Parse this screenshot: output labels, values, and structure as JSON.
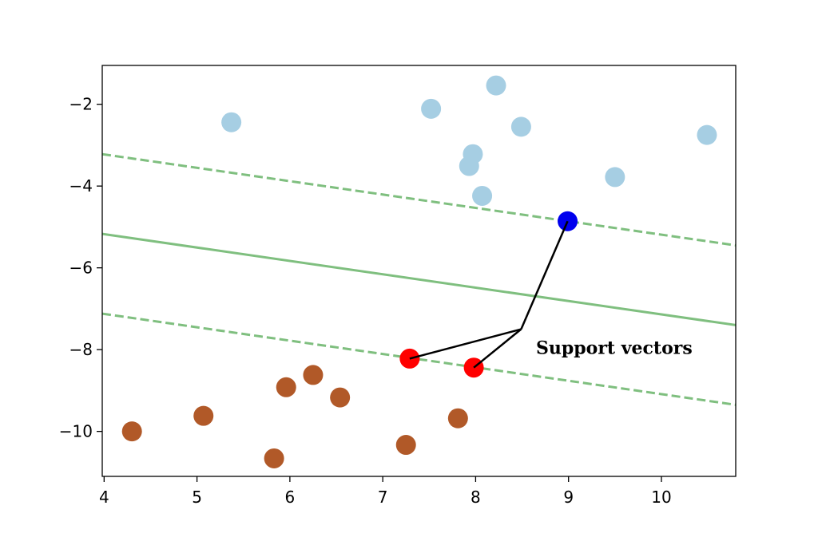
{
  "chart_data": {
    "type": "scatter",
    "title": "",
    "xlabel": "",
    "ylabel": "",
    "xlim": [
      3.98,
      10.8
    ],
    "ylim": [
      -11.1,
      -1.05
    ],
    "xticks": [
      4,
      5,
      6,
      7,
      8,
      9,
      10
    ],
    "yticks": [
      -2,
      -4,
      -6,
      -8,
      -10
    ],
    "xtick_labels": [
      "4",
      "5",
      "6",
      "7",
      "8",
      "9",
      "10"
    ],
    "ytick_labels": [
      "−2",
      "−4",
      "−6",
      "−8",
      "−10"
    ],
    "grid": false,
    "series": [
      {
        "color": "#a6cee3",
        "points": [
          [
            5.37,
            -2.44
          ],
          [
            7.52,
            -2.11
          ],
          [
            8.22,
            -1.54
          ],
          [
            8.49,
            -2.55
          ],
          [
            7.97,
            -3.22
          ],
          [
            7.93,
            -3.51
          ],
          [
            8.07,
            -4.24
          ],
          [
            9.5,
            -3.78
          ],
          [
            10.49,
            -2.75
          ]
        ]
      },
      {
        "color": "#b15928",
        "points": [
          [
            4.3,
            -10.0
          ],
          [
            5.07,
            -9.62
          ],
          [
            5.83,
            -10.66
          ],
          [
            5.96,
            -8.92
          ],
          [
            6.25,
            -8.62
          ],
          [
            6.54,
            -9.17
          ],
          [
            7.25,
            -10.33
          ],
          [
            7.81,
            -9.68
          ]
        ]
      },
      {
        "color": "#0000ee",
        "points": [
          [
            8.99,
            -4.86
          ]
        ]
      },
      {
        "color": "#ff0000",
        "points": [
          [
            7.29,
            -8.22
          ],
          [
            7.98,
            -8.44
          ]
        ]
      }
    ],
    "lines": [
      {
        "kind": "decision-boundary",
        "style": "solid",
        "color": "#7fbf7f",
        "points": [
          [
            3.98,
            -5.17
          ],
          [
            10.8,
            -7.4
          ]
        ]
      },
      {
        "kind": "margin-upper",
        "style": "dashed",
        "color": "#7fbf7f",
        "points": [
          [
            3.98,
            -3.22
          ],
          [
            10.8,
            -5.45
          ]
        ]
      },
      {
        "kind": "margin-lower",
        "style": "dashed",
        "color": "#7fbf7f",
        "points": [
          [
            3.98,
            -7.12
          ],
          [
            10.8,
            -9.35
          ]
        ]
      }
    ],
    "annotation": {
      "text": "Support vectors",
      "position": [
        8.65,
        -8.1
      ],
      "hub": [
        8.49,
        -7.5
      ],
      "targets": [
        [
          8.99,
          -4.86
        ],
        [
          7.29,
          -8.22
        ],
        [
          7.98,
          -8.44
        ]
      ]
    }
  }
}
